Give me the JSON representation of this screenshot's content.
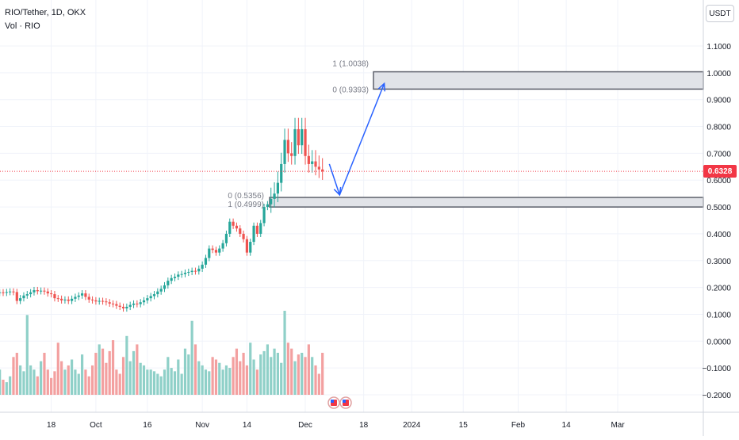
{
  "header": {
    "title": "RIO/Tether, 1D, OKX",
    "volume_label": "Vol · RIO",
    "currency": "USDT",
    "last_price": "0.6328"
  },
  "colors": {
    "up": "#26a69a",
    "down": "#ef5350",
    "volume_up": "#8fd0c8",
    "volume_down": "#f3a0a0",
    "price_line": "#f23645",
    "arrow": "#2962ff",
    "zone_fill": "#e1e3e8",
    "zone_border": "#5d606b"
  },
  "chart_data": {
    "type": "candlestick",
    "title": "RIO/Tether, 1D, OKX",
    "ylim": [
      -0.25,
      1.15
    ],
    "y_ticks": [
      "1.1000",
      "1.0000",
      "0.9000",
      "0.8000",
      "0.7000",
      "0.6000",
      "0.5000",
      "0.4000",
      "0.3000",
      "0.2000",
      "0.1000",
      "0.0000",
      "−0.1000",
      "−0.2000"
    ],
    "y_tick_values": [
      1.1,
      1.0,
      0.9,
      0.8,
      0.7,
      0.6,
      0.5,
      0.4,
      0.3,
      0.2,
      0.1,
      0.0,
      -0.1,
      -0.2
    ],
    "x_ticks": [
      "18",
      "Oct",
      "16",
      "Nov",
      "14",
      "Dec",
      "18",
      "2024",
      "15",
      "Feb",
      "14",
      "Mar"
    ],
    "x_tick_days": [
      17,
      30,
      45,
      61,
      74,
      91,
      108,
      122,
      137,
      153,
      167,
      182
    ],
    "last_price": 0.6328,
    "closes": [
      0.178,
      0.18,
      0.182,
      0.18,
      0.183,
      0.185,
      0.183,
      0.15,
      0.16,
      0.17,
      0.175,
      0.182,
      0.19,
      0.186,
      0.188,
      0.185,
      0.178,
      0.175,
      0.16,
      0.158,
      0.152,
      0.155,
      0.15,
      0.158,
      0.165,
      0.17,
      0.178,
      0.165,
      0.155,
      0.152,
      0.148,
      0.15,
      0.148,
      0.145,
      0.14,
      0.138,
      0.132,
      0.128,
      0.122,
      0.128,
      0.135,
      0.14,
      0.138,
      0.145,
      0.152,
      0.16,
      0.168,
      0.175,
      0.185,
      0.195,
      0.208,
      0.225,
      0.235,
      0.24,
      0.248,
      0.25,
      0.255,
      0.258,
      0.262,
      0.26,
      0.27,
      0.285,
      0.31,
      0.345,
      0.34,
      0.33,
      0.345,
      0.365,
      0.4,
      0.445,
      0.43,
      0.42,
      0.4,
      0.38,
      0.33,
      0.37,
      0.43,
      0.4,
      0.44,
      0.5,
      0.51,
      0.53,
      0.55,
      0.59,
      0.66,
      0.75,
      0.7,
      0.69,
      0.79,
      0.73,
      0.79,
      0.69,
      0.66,
      0.67,
      0.65,
      0.64,
      0.6328
    ],
    "series": [
      {
        "name": "RIO/Tether",
        "unit": "USDT"
      }
    ],
    "volume": {
      "label": "Vol · RIO",
      "values": [
        0.25,
        0.2,
        0.3,
        0.18,
        0.15,
        0.22,
        0.45,
        0.5,
        0.35,
        0.28,
        0.95,
        0.35,
        0.3,
        0.22,
        0.4,
        0.5,
        0.3,
        0.2,
        0.28,
        0.62,
        0.4,
        0.3,
        0.35,
        0.42,
        0.3,
        0.25,
        0.48,
        0.3,
        0.22,
        0.35,
        0.5,
        0.6,
        0.55,
        0.38,
        0.52,
        0.65,
        0.3,
        0.25,
        0.45,
        0.7,
        0.4,
        0.52,
        0.6,
        0.38,
        0.35,
        0.3,
        0.3,
        0.28,
        0.25,
        0.22,
        0.3,
        0.45,
        0.32,
        0.28,
        0.42,
        0.25,
        0.55,
        0.48,
        0.88,
        0.6,
        0.4,
        0.35,
        0.3,
        0.28,
        0.45,
        0.42,
        0.38,
        0.3,
        0.35,
        0.32,
        0.45,
        0.55,
        0.4,
        0.5,
        0.35,
        0.62,
        0.42,
        0.3,
        0.48,
        0.52,
        0.6,
        0.45,
        0.55,
        0.5,
        0.38,
        1.0,
        0.62,
        0.55,
        0.4,
        0.48,
        0.5,
        0.45,
        0.6,
        0.45,
        0.35,
        0.25,
        0.5
      ]
    },
    "annotations": [
      {
        "label": "1 (1.0038)",
        "value": 1.0038,
        "zone": "upper"
      },
      {
        "label": "0 (0.9393)",
        "value": 0.9393,
        "zone": "upper"
      },
      {
        "label": "0 (0.5356)",
        "value": 0.5356,
        "zone": "lower"
      },
      {
        "label": "1 (0.4999)",
        "value": 0.4999,
        "zone": "lower"
      }
    ],
    "projection_path": [
      {
        "day": 98,
        "price": 0.66
      },
      {
        "day": 101,
        "price": 0.545
      },
      {
        "day": 114,
        "price": 0.96
      }
    ],
    "grid": true,
    "legend_position": "top-left"
  }
}
